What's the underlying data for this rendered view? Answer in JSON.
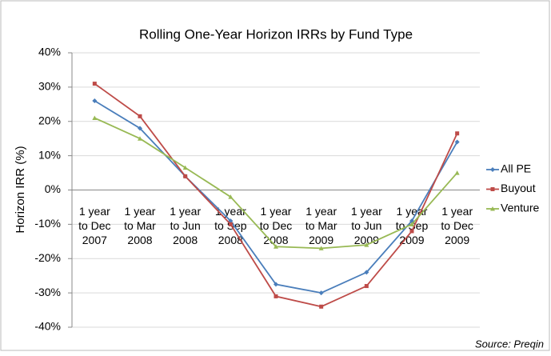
{
  "chart_data": {
    "type": "line",
    "title": "Rolling One-Year Horizon IRRs by Fund Type",
    "y_label": "Horizon IRR (%)",
    "source": "Source: Preqin",
    "categories": [
      [
        "1 year",
        "to Dec",
        "2007"
      ],
      [
        "1 year",
        "to Mar",
        "2008"
      ],
      [
        "1 year",
        "to Jun",
        "2008"
      ],
      [
        "1 year",
        "to Sep",
        "2008"
      ],
      [
        "1 year",
        "to Dec",
        "2008"
      ],
      [
        "1 year",
        "to Mar",
        "2009"
      ],
      [
        "1 year",
        "to Jun",
        "2009"
      ],
      [
        "1 year",
        "to Sep",
        "2009"
      ],
      [
        "1 year",
        "to Dec",
        "2009"
      ]
    ],
    "series": [
      {
        "name": "All PE",
        "color": "#4a7ebb",
        "marker": "diamond",
        "values": [
          26,
          18,
          4,
          -9,
          -27.5,
          -30,
          -24,
          -9,
          14
        ]
      },
      {
        "name": "Buyout",
        "color": "#be4b48",
        "marker": "square",
        "values": [
          31,
          21.5,
          4,
          -10,
          -31,
          -34,
          -28,
          -12,
          16.5
        ]
      },
      {
        "name": "Venture",
        "color": "#98b954",
        "marker": "triangle",
        "values": [
          21,
          15,
          6.5,
          -2,
          -16.5,
          -17,
          -16,
          -10,
          5
        ]
      }
    ],
    "ylim": [
      -40,
      40
    ],
    "yticks": [
      {
        "value": -40,
        "label": "-40%"
      },
      {
        "value": -30,
        "label": "-30%"
      },
      {
        "value": -20,
        "label": "-20%"
      },
      {
        "value": -10,
        "label": "-10%"
      },
      {
        "value": 0,
        "label": "0%"
      },
      {
        "value": 10,
        "label": "10%"
      },
      {
        "value": 20,
        "label": "20%"
      },
      {
        "value": 30,
        "label": "30%"
      },
      {
        "value": 40,
        "label": "40%"
      }
    ],
    "grid": true,
    "legend": "right"
  }
}
